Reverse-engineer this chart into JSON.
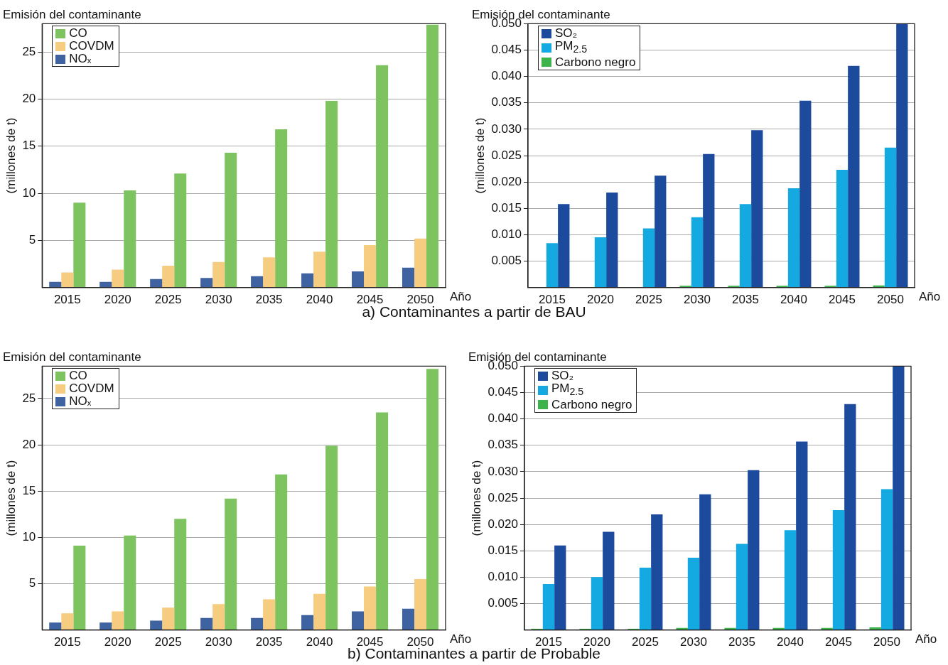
{
  "chart_data": [
    {
      "type": "bar",
      "title": "Emisión del contaminante",
      "ylabel": "(millones de t)",
      "xlabel": "Año",
      "annotations": [
        "a) Contaminantes a partir de BAU"
      ],
      "categories": [
        "2015",
        "2020",
        "2025",
        "2030",
        "2035",
        "2040",
        "2045",
        "2050"
      ],
      "series": [
        {
          "name": "NOₓ",
          "color": "#3f62a0",
          "values": [
            0.6,
            0.6,
            0.9,
            1.0,
            1.2,
            1.5,
            1.7,
            2.1
          ]
        },
        {
          "name": "COVDM",
          "color": "#f5cc80",
          "values": [
            1.6,
            1.9,
            2.3,
            2.7,
            3.2,
            3.8,
            4.5,
            5.2
          ]
        },
        {
          "name": "CO",
          "color": "#7dc35f",
          "values": [
            9.0,
            10.3,
            12.1,
            14.3,
            16.8,
            19.8,
            23.6,
            27.9
          ]
        }
      ],
      "ylim": [
        0,
        28
      ],
      "yticks": [
        5,
        10,
        15,
        20,
        25
      ],
      "grid": "y",
      "legend": "top left"
    },
    {
      "type": "bar",
      "title": "Emisión del contaminante",
      "ylabel": "(millones de t)",
      "xlabel": "Año",
      "categories": [
        "2015",
        "2020",
        "2025",
        "2030",
        "2035",
        "2040",
        "2045",
        "2050"
      ],
      "series": [
        {
          "name": "Carbono negro",
          "color": "#3cb44b",
          "values": [
            0,
            0,
            0,
            0.0003,
            0.0003,
            0.0003,
            0.0003,
            0.0004
          ]
        },
        {
          "name": "PM$_{2.5}$",
          "color": "#14a9e0",
          "values": [
            0.0084,
            0.0095,
            0.0112,
            0.0133,
            0.0158,
            0.0188,
            0.0223,
            0.0265
          ]
        },
        {
          "name": "SO₂",
          "color": "#1c4b9e",
          "values": [
            0.0158,
            0.018,
            0.0212,
            0.0253,
            0.0298,
            0.0354,
            0.042,
            0.05
          ]
        }
      ],
      "ylim": [
        0,
        0.05
      ],
      "yticks": [
        {
          "value": 0.005,
          "label": "0.005"
        },
        {
          "value": 0.01,
          "label": "0.010"
        },
        {
          "value": 0.015,
          "label": "0.015"
        },
        {
          "value": 0.02,
          "label": "0.020"
        },
        {
          "value": 0.025,
          "label": "0.025"
        },
        {
          "value": 0.03,
          "label": "0.030"
        },
        {
          "value": 0.035,
          "label": "0.035"
        },
        {
          "value": 0.04,
          "label": "0.040"
        },
        {
          "value": 0.045,
          "label": "0.045"
        },
        {
          "value": 0.05,
          "label": "0.050"
        }
      ],
      "grid": "y",
      "legend": "top left"
    },
    {
      "type": "bar",
      "title": "Emisión del contaminante",
      "ylabel": "(millones de t)",
      "xlabel": "Año",
      "annotations": [
        "b) Contaminantes a partir de Probable"
      ],
      "categories": [
        "2015",
        "2020",
        "2025",
        "2030",
        "2035",
        "2040",
        "2045",
        "2050"
      ],
      "series": [
        {
          "name": "NOₓ",
          "color": "#3f62a0",
          "values": [
            0.8,
            0.8,
            1.0,
            1.3,
            1.3,
            1.6,
            2.0,
            2.3
          ]
        },
        {
          "name": "COVDM",
          "color": "#f5cc80",
          "values": [
            1.8,
            2.0,
            2.4,
            2.8,
            3.3,
            3.9,
            4.7,
            5.5
          ]
        },
        {
          "name": "CO",
          "color": "#7dc35f",
          "values": [
            9.1,
            10.2,
            12.0,
            14.2,
            16.8,
            19.9,
            23.5,
            28.2
          ]
        }
      ],
      "ylim": [
        0,
        28.5
      ],
      "yticks": [
        5,
        10,
        15,
        20,
        25
      ],
      "grid": "y",
      "legend": "top left"
    },
    {
      "type": "bar",
      "title": "Emisión del contaminante",
      "ylabel": "(millones de t)",
      "xlabel": "Año",
      "categories": [
        "2015",
        "2020",
        "2025",
        "2030",
        "2035",
        "2040",
        "2045",
        "2050"
      ],
      "series": [
        {
          "name": "Carbono negro",
          "color": "#3cb44b",
          "values": [
            0.0002,
            0.0002,
            0.0002,
            0.0004,
            0.0004,
            0.0004,
            0.0004,
            0.0005
          ]
        },
        {
          "name": "PM$_{2.5}$",
          "color": "#14a9e0",
          "values": [
            0.0087,
            0.01,
            0.0118,
            0.0137,
            0.0163,
            0.0189,
            0.0227,
            0.0267
          ]
        },
        {
          "name": "SO₂",
          "color": "#1c4b9e",
          "values": [
            0.016,
            0.0186,
            0.0219,
            0.0257,
            0.0303,
            0.0357,
            0.0428,
            0.05
          ]
        }
      ],
      "ylim": [
        0,
        0.05
      ],
      "yticks": [
        {
          "value": 0.005,
          "label": "0.005"
        },
        {
          "value": 0.01,
          "label": "0.010"
        },
        {
          "value": 0.015,
          "label": "0.015"
        },
        {
          "value": 0.02,
          "label": "0.020"
        },
        {
          "value": 0.025,
          "label": "0.025"
        },
        {
          "value": 0.03,
          "label": "0.030"
        },
        {
          "value": 0.035,
          "label": "0.035"
        },
        {
          "value": 0.04,
          "label": "0.040"
        },
        {
          "value": 0.045,
          "label": "0.045"
        },
        {
          "value": 0.05,
          "label": "0.050"
        }
      ],
      "grid": "y",
      "legend": "top left"
    }
  ]
}
